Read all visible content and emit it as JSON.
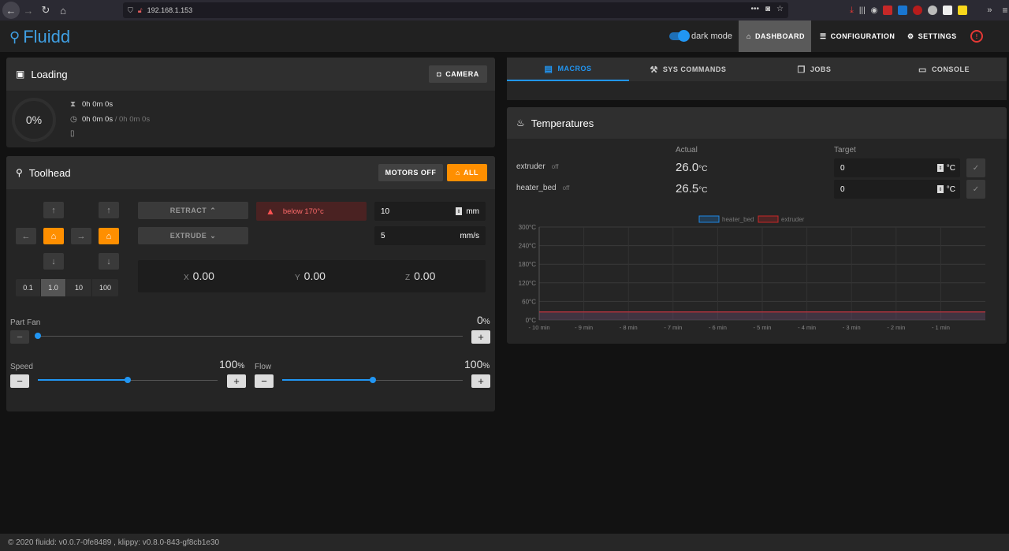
{
  "browser": {
    "url": "192.168.1.153"
  },
  "app": {
    "logo": "Fluidd",
    "dark_mode_label": "dark mode",
    "nav": {
      "dashboard": "DASHBOARD",
      "configuration": "CONFIGURATION",
      "settings": "SETTINGS"
    }
  },
  "status_card": {
    "title": "Loading",
    "camera_button": "CAMERA",
    "progress": "0%",
    "elapsed": "0h 0m 0s",
    "time_total": "0h 0m 0s",
    "time_sep": " / ",
    "time_est": "0h 0m 0s"
  },
  "toolhead": {
    "title": "Toolhead",
    "motors_off": "MOTORS OFF",
    "all": "ALL",
    "steps": [
      "0.1",
      "1.0",
      "10",
      "100"
    ],
    "retract": "RETRACT",
    "extrude": "EXTRUDE",
    "warning": "below 170°c",
    "length_value": "10",
    "length_unit": "mm",
    "speed_value": "5",
    "speed_unit": "mm/s",
    "x_label": "X",
    "x": "0.00",
    "y_label": "Y",
    "y": "0.00",
    "z_label": "Z",
    "z": "0.00",
    "part_fan_label": "Part Fan",
    "part_fan_value": "0",
    "part_fan_pct": 0,
    "speed_label": "Speed",
    "speed_factor": "100",
    "speed_pct": 0.5,
    "flow_label": "Flow",
    "flow_factor": "100",
    "flow_pct": 0.5,
    "percent": "%"
  },
  "tabs": [
    "MACROS",
    "SYS COMMANDS",
    "JOBS",
    "CONSOLE"
  ],
  "temperatures": {
    "title": "Temperatures",
    "actual_header": "Actual",
    "target_header": "Target",
    "unit": "°C",
    "heaters": [
      {
        "name": "extruder",
        "state": "off",
        "actual": "26.0",
        "target": "0"
      },
      {
        "name": "heater_bed",
        "state": "off",
        "actual": "26.5",
        "target": "0"
      }
    ]
  },
  "chart_data": {
    "type": "line",
    "legend": [
      "heater_bed",
      "extruder"
    ],
    "y_ticks": [
      "300°C",
      "240°C",
      "180°C",
      "120°C",
      "60°C",
      "0°C"
    ],
    "x_ticks": [
      "- 10 min",
      "- 9 min",
      "- 8 min",
      "- 7 min",
      "- 6 min",
      "- 5 min",
      "- 4 min",
      "- 3 min",
      "- 2 min",
      "- 1 min"
    ],
    "ylim": [
      0,
      300
    ],
    "series": [
      {
        "name": "heater_bed",
        "color": "#1e88e5",
        "values": [
          26.5,
          26.5,
          26.5,
          26.5,
          26.5,
          26.5,
          26.5,
          26.5,
          26.5,
          26.5,
          26.5
        ]
      },
      {
        "name": "extruder",
        "color": "#c62828",
        "values": [
          26.0,
          26.0,
          26.0,
          26.0,
          26.0,
          26.0,
          26.0,
          26.0,
          26.0,
          26.0,
          26.0
        ]
      }
    ],
    "grid": true,
    "legend_position": "top-center"
  },
  "footer": "© 2020 fluidd: v0.0.7-0fe8489 , klippy: v0.8.0-843-gf8cb1e30",
  "colors": {
    "accent": "#2196f3",
    "orange": "#ff8f00",
    "logo": "#3f9fe2"
  }
}
